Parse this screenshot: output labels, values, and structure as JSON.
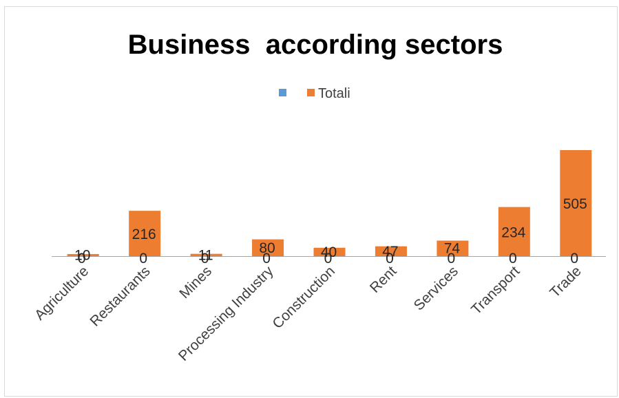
{
  "chart_data": {
    "type": "bar",
    "title": "Business  according sectors",
    "xlabel": "",
    "ylabel": "",
    "categories": [
      "Agriculture",
      "Restaurants",
      "Mines",
      "Processing Industry",
      "Construction",
      "Rent",
      "Services",
      "Transport",
      "Trade"
    ],
    "series": [
      {
        "values": [
          0,
          0,
          0,
          0,
          0,
          0,
          0,
          0,
          0
        ],
        "color": "#5B9BD5"
      },
      {
        "name": "Totali",
        "values": [
          10,
          216,
          11,
          80,
          40,
          47,
          74,
          234,
          505
        ],
        "color": "#ED7D31"
      }
    ],
    "ylim": [
      0,
      505
    ],
    "grid": false,
    "legend": "top-center",
    "data_labels": true
  }
}
